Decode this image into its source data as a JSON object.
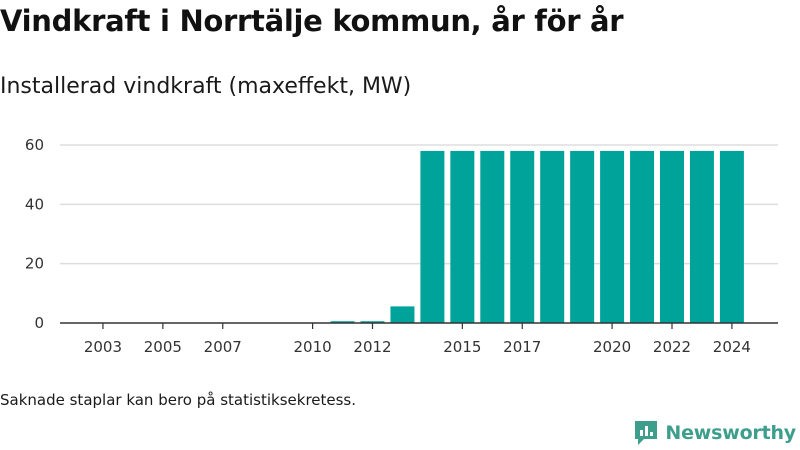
{
  "title": "Vindkraft i Norrtälje kommun, år för år",
  "subtitle": "Installerad vindkraft (maxeffekt, MW)",
  "note": "Saknade staplar kan bero på statistiksekretess.",
  "brand": "Newsworthy",
  "colors": {
    "bar": "#00a39a",
    "grid": "#dddddd",
    "axis": "#333333",
    "brand": "#3e9e8c"
  },
  "chart_data": {
    "type": "bar",
    "categories": [
      "2002",
      "2003",
      "2004",
      "2005",
      "2006",
      "2007",
      "2008",
      "2009",
      "2010",
      "2011",
      "2012",
      "2013",
      "2014",
      "2015",
      "2016",
      "2017",
      "2018",
      "2019",
      "2020",
      "2021",
      "2022",
      "2023",
      "2024"
    ],
    "values": [
      0,
      0,
      0,
      0,
      0,
      0,
      0,
      0,
      0,
      0.6,
      0.6,
      5.6,
      58,
      58,
      58,
      58,
      58,
      58,
      58,
      58,
      58,
      58,
      58
    ],
    "x_tick_labels": [
      "2003",
      "2005",
      "2007",
      "2010",
      "2012",
      "2015",
      "2017",
      "2020",
      "2022",
      "2024"
    ],
    "y_ticks": [
      0,
      20,
      40,
      60
    ],
    "ylim": [
      0,
      62
    ],
    "grid": true,
    "legend": "none"
  }
}
